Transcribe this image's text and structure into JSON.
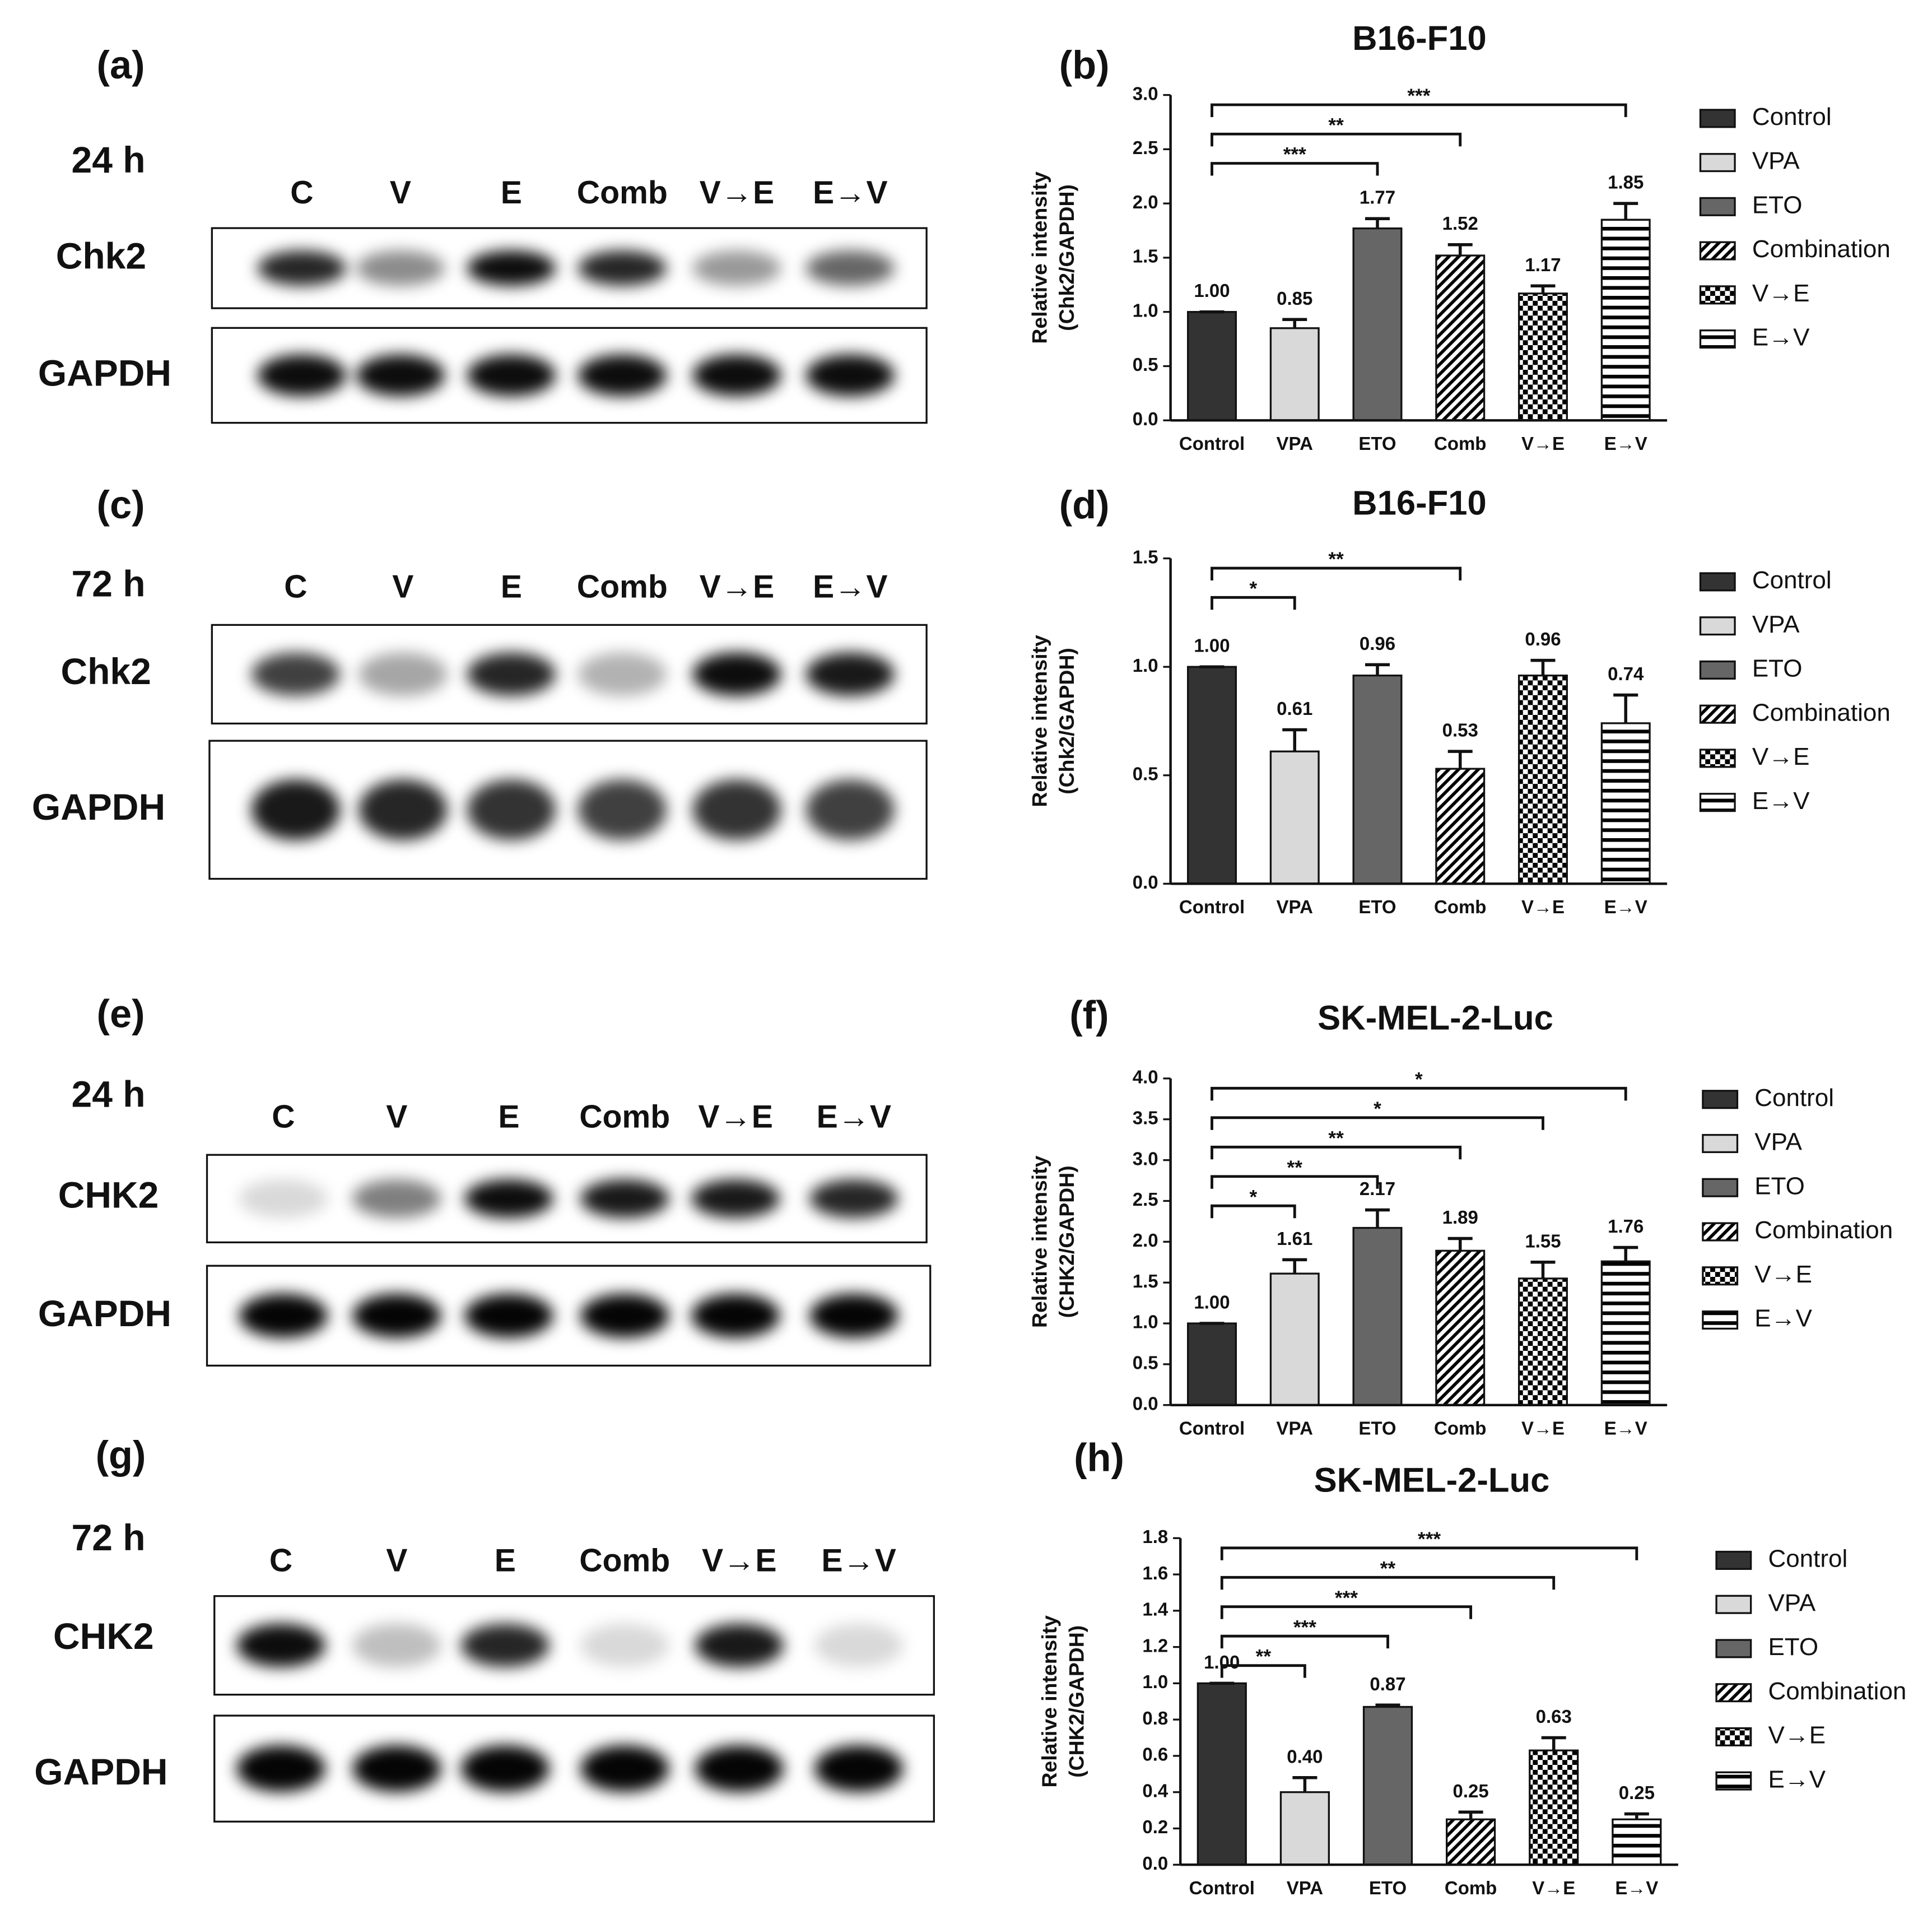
{
  "chart_data": [
    {
      "type": "bar",
      "panel": "(b)",
      "title": "B16-F10",
      "y_label": [
        "Relative intensity",
        "(Chk2/GAPDH)"
      ],
      "categories": [
        "Control",
        "VPA",
        "ETO",
        "Comb",
        "V→E",
        "E→V"
      ],
      "values": [
        1.0,
        0.85,
        1.77,
        1.52,
        1.17,
        1.85
      ],
      "value_labels": [
        "1.00",
        "0.85",
        "1.77",
        "1.52",
        "1.17",
        "1.85"
      ],
      "errors": [
        0,
        0.08,
        0.09,
        0.1,
        0.07,
        0.15
      ],
      "colors": [
        "#333333",
        "#d9d9d9",
        "#666666",
        "#000000",
        "#000000",
        "#000000"
      ],
      "patterns": [
        "solid",
        "solid",
        "solid",
        "diagonal",
        "checker",
        "horizontal"
      ],
      "legend": [
        "Control",
        "VPA",
        "ETO",
        "Combination",
        "V→E",
        "E→V"
      ],
      "significance": [
        {
          "from": "Control",
          "to": "ETO",
          "label": "***"
        },
        {
          "from": "Control",
          "to": "Comb",
          "label": "**"
        },
        {
          "from": "Control",
          "to": "E→V",
          "label": "***"
        }
      ],
      "ylim": [
        0,
        3
      ],
      "yticks": [
        {
          "value": 0,
          "label": "0.0"
        },
        0.5,
        {
          "value": 1,
          "label": "1.0"
        },
        1.5,
        {
          "value": 2,
          "label": "2.0"
        },
        2.5,
        {
          "value": 3,
          "label": "3.0"
        }
      ]
    },
    {
      "type": "bar",
      "panel": "(d)",
      "title": "B16-F10",
      "y_label": [
        "Relative intensity",
        "(Chk2/GAPDH)"
      ],
      "categories": [
        "Control",
        "VPA",
        "ETO",
        "Comb",
        "V→E",
        "E→V"
      ],
      "values": [
        1.0,
        0.61,
        0.96,
        0.53,
        0.96,
        0.74
      ],
      "value_labels": [
        "1.00",
        "0.61",
        "0.96",
        "0.53",
        "0.96",
        "0.74"
      ],
      "errors": [
        0,
        0.1,
        0.05,
        0.08,
        0.07,
        0.13
      ],
      "colors": [
        "#333333",
        "#d9d9d9",
        "#666666",
        "#000000",
        "#000000",
        "#000000"
      ],
      "patterns": [
        "solid",
        "solid",
        "solid",
        "diagonal",
        "checker",
        "horizontal"
      ],
      "legend": [
        "Control",
        "VPA",
        "ETO",
        "Combination",
        "V→E",
        "E→V"
      ],
      "significance": [
        {
          "from": "Control",
          "to": "VPA",
          "label": "*"
        },
        {
          "from": "Control",
          "to": "Comb",
          "label": "**"
        }
      ],
      "ylim": [
        0,
        1.5
      ],
      "yticks": [
        {
          "value": 0,
          "label": "0.0"
        },
        0.5,
        {
          "value": 1,
          "label": "1.0"
        },
        1.5
      ]
    },
    {
      "type": "bar",
      "panel": "(f)",
      "title": "SK-MEL-2-Luc",
      "y_label": [
        "Relative intensity",
        "(CHK2/GAPDH)"
      ],
      "categories": [
        "Control",
        "VPA",
        "ETO",
        "Comb",
        "V→E",
        "E→V"
      ],
      "values": [
        1.0,
        1.61,
        2.17,
        1.89,
        1.55,
        1.76
      ],
      "value_labels": [
        "1.00",
        "1.61",
        "2.17",
        "1.89",
        "1.55",
        "1.76"
      ],
      "errors": [
        0,
        0.17,
        0.22,
        0.15,
        0.2,
        0.17
      ],
      "colors": [
        "#333333",
        "#d9d9d9",
        "#666666",
        "#000000",
        "#000000",
        "#000000"
      ],
      "patterns": [
        "solid",
        "solid",
        "solid",
        "diagonal",
        "checker",
        "horizontal"
      ],
      "legend": [
        "Control",
        "VPA",
        "ETO",
        "Combination",
        "V→E",
        "E→V"
      ],
      "significance": [
        {
          "from": "Control",
          "to": "VPA",
          "label": "*"
        },
        {
          "from": "Control",
          "to": "ETO",
          "label": "**"
        },
        {
          "from": "Control",
          "to": "Comb",
          "label": "**"
        },
        {
          "from": "Control",
          "to": "V→E",
          "label": "*"
        },
        {
          "from": "Control",
          "to": "E→V",
          "label": "*"
        }
      ],
      "ylim": [
        0,
        4
      ],
      "yticks": [
        {
          "value": 0,
          "label": "0.0"
        },
        0.5,
        {
          "value": 1,
          "label": "1.0"
        },
        1.5,
        {
          "value": 2,
          "label": "2.0"
        },
        2.5,
        {
          "value": 3,
          "label": "3.0"
        },
        3.5,
        {
          "value": 4,
          "label": "4.0"
        }
      ]
    },
    {
      "type": "bar",
      "panel": "(h)",
      "title": "SK-MEL-2-Luc",
      "y_label": [
        "Relative intensity",
        "(CHK2/GAPDH)"
      ],
      "categories": [
        "Control",
        "VPA",
        "ETO",
        "Comb",
        "V→E",
        "E→V"
      ],
      "values": [
        1.0,
        0.4,
        0.87,
        0.25,
        0.63,
        0.25
      ],
      "value_labels": [
        "1.00",
        "0.40",
        "0.87",
        "0.25",
        "0.63",
        "0.25"
      ],
      "errors": [
        0,
        0.08,
        0.01,
        0.04,
        0.07,
        0.03
      ],
      "colors": [
        "#333333",
        "#d9d9d9",
        "#666666",
        "#000000",
        "#000000",
        "#000000"
      ],
      "patterns": [
        "solid",
        "solid",
        "solid",
        "diagonal",
        "checker",
        "horizontal"
      ],
      "legend": [
        "Control",
        "VPA",
        "ETO",
        "Combination",
        "V→E",
        "E→V"
      ],
      "significance": [
        {
          "from": "Control",
          "to": "VPA",
          "label": "**"
        },
        {
          "from": "Control",
          "to": "ETO",
          "label": "***"
        },
        {
          "from": "Control",
          "to": "Comb",
          "label": "***"
        },
        {
          "from": "Control",
          "to": "V→E",
          "label": "**"
        },
        {
          "from": "Control",
          "to": "E→V",
          "label": "***"
        }
      ],
      "ylim": [
        0,
        1.8
      ],
      "yticks": [
        {
          "value": 0,
          "label": "0.0"
        },
        0.2,
        0.4,
        0.6,
        0.8,
        {
          "value": 1,
          "label": "1.0"
        },
        1.2,
        1.4,
        1.6,
        1.8
      ]
    }
  ],
  "blots": [
    {
      "panel": "(a)",
      "time": "24 h",
      "lanes": [
        "C",
        "V",
        "E",
        "Comb",
        "V→E",
        "E→V"
      ],
      "rows": [
        "Chk2",
        "GAPDH"
      ]
    },
    {
      "panel": "(c)",
      "time": "72 h",
      "lanes": [
        "C",
        "V",
        "E",
        "Comb",
        "V→E",
        "E→V"
      ],
      "rows": [
        "Chk2",
        "GAPDH"
      ]
    },
    {
      "panel": "(e)",
      "time": "24 h",
      "lanes": [
        "C",
        "V",
        "E",
        "Comb",
        "V→E",
        "E→V"
      ],
      "rows": [
        "CHK2",
        "GAPDH"
      ]
    },
    {
      "panel": "(g)",
      "time": "72 h",
      "lanes": [
        "C",
        "V",
        "E",
        "Comb",
        "V→E",
        "E→V"
      ],
      "rows": [
        "CHK2",
        "GAPDH"
      ]
    }
  ]
}
